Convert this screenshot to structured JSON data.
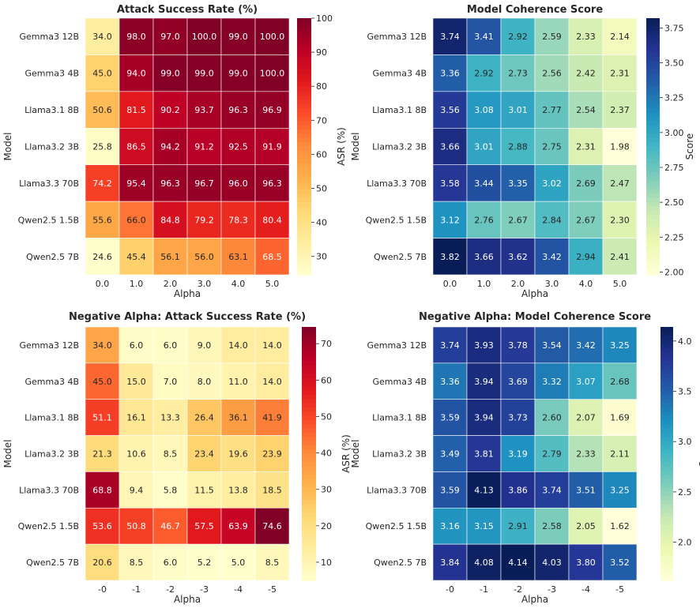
{
  "chart_data": [
    {
      "type": "heatmap",
      "title": "Attack Success Rate (%)",
      "xlabel": "Alpha",
      "ylabel": "Model",
      "colorbar_label": "ASR (%)",
      "colormap": "YlOrRd",
      "x_categories": [
        "0.0",
        "1.0",
        "2.0",
        "3.0",
        "4.0",
        "5.0"
      ],
      "y_categories": [
        "Gemma3 12B",
        "Gemma3 4B",
        "Llama3.1 8B",
        "Llama3.2 3B",
        "Llama3.3 70B",
        "Qwen2.5 1.5B",
        "Qwen2.5 7B"
      ],
      "values": [
        [
          34.0,
          98.0,
          97.0,
          100.0,
          99.0,
          100.0
        ],
        [
          45.0,
          94.0,
          99.0,
          99.0,
          99.0,
          100.0
        ],
        [
          50.6,
          81.5,
          90.2,
          93.7,
          96.3,
          96.9
        ],
        [
          25.8,
          86.5,
          94.2,
          91.2,
          92.5,
          91.9
        ],
        [
          74.2,
          95.4,
          96.3,
          96.7,
          96.0,
          96.3
        ],
        [
          55.6,
          66.0,
          84.8,
          79.2,
          78.3,
          80.4
        ],
        [
          24.6,
          45.4,
          56.1,
          56.0,
          63.1,
          68.5
        ]
      ],
      "decimals": 1,
      "vmin": 24.6,
      "vmax": 100,
      "colorbar_ticks": [
        30,
        40,
        50,
        60,
        70,
        80,
        90,
        100
      ]
    },
    {
      "type": "heatmap",
      "title": "Model Coherence Score",
      "xlabel": "Alpha",
      "ylabel": "Model",
      "colorbar_label": "Score",
      "colormap": "YlGnBu",
      "x_categories": [
        "0.0",
        "1.0",
        "2.0",
        "3.0",
        "4.0",
        "5.0"
      ],
      "y_categories": [
        "Gemma3 12B",
        "Gemma3 4B",
        "Llama3.1 8B",
        "Llama3.2 3B",
        "Llama3.3 70B",
        "Qwen2.5 1.5B",
        "Qwen2.5 7B"
      ],
      "values": [
        [
          3.74,
          3.41,
          2.92,
          2.59,
          2.33,
          2.14
        ],
        [
          3.36,
          2.92,
          2.73,
          2.56,
          2.42,
          2.31
        ],
        [
          3.56,
          3.08,
          3.01,
          2.77,
          2.54,
          2.37
        ],
        [
          3.66,
          3.01,
          2.88,
          2.75,
          2.31,
          1.98
        ],
        [
          3.58,
          3.44,
          3.35,
          3.02,
          2.69,
          2.47
        ],
        [
          3.12,
          2.76,
          2.67,
          2.84,
          2.67,
          2.3
        ],
        [
          3.82,
          3.66,
          3.62,
          3.42,
          2.94,
          2.41
        ]
      ],
      "decimals": 2,
      "vmin": 1.98,
      "vmax": 3.82,
      "colorbar_ticks": [
        2.0,
        2.25,
        2.5,
        2.75,
        3.0,
        3.25,
        3.5,
        3.75
      ]
    },
    {
      "type": "heatmap",
      "title": "Negative Alpha: Attack Success Rate (%)",
      "xlabel": "Alpha",
      "ylabel": "Model",
      "colorbar_label": "ASR (%)",
      "colormap": "YlOrRd",
      "x_categories": [
        "-0",
        "-1",
        "-2",
        "-3",
        "-4",
        "-5"
      ],
      "y_categories": [
        "Gemma3 12B",
        "Gemma3 4B",
        "Llama3.1 8B",
        "Llama3.2 3B",
        "Llama3.3 70B",
        "Qwen2.5 1.5B",
        "Qwen2.5 7B"
      ],
      "values": [
        [
          34.0,
          6.0,
          6.0,
          9.0,
          14.0,
          14.0
        ],
        [
          45.0,
          15.0,
          7.0,
          8.0,
          11.0,
          14.0
        ],
        [
          51.1,
          16.1,
          13.3,
          26.4,
          36.1,
          41.9
        ],
        [
          21.3,
          10.6,
          8.5,
          23.4,
          19.6,
          23.9
        ],
        [
          68.8,
          9.4,
          5.8,
          11.5,
          13.8,
          18.5
        ],
        [
          53.6,
          50.8,
          46.7,
          57.5,
          63.9,
          74.6
        ],
        [
          20.6,
          8.5,
          6.0,
          5.2,
          5.0,
          8.5
        ]
      ],
      "decimals": 1,
      "vmin": 5.0,
      "vmax": 74.6,
      "colorbar_ticks": [
        10,
        20,
        30,
        40,
        50,
        60,
        70
      ]
    },
    {
      "type": "heatmap",
      "title": "Negative Alpha: Model Coherence Score",
      "xlabel": "Alpha",
      "ylabel": "Model",
      "colorbar_label": "Score",
      "colormap": "YlGnBu",
      "x_categories": [
        "-0",
        "-1",
        "-2",
        "-3",
        "-4",
        "-5"
      ],
      "y_categories": [
        "Gemma3 12B",
        "Gemma3 4B",
        "Llama3.1 8B",
        "Llama3.2 3B",
        "Llama3.3 70B",
        "Qwen2.5 1.5B",
        "Qwen2.5 7B"
      ],
      "values": [
        [
          3.74,
          3.93,
          3.78,
          3.54,
          3.42,
          3.25
        ],
        [
          3.36,
          3.94,
          3.69,
          3.32,
          3.07,
          2.68
        ],
        [
          3.59,
          3.94,
          3.73,
          2.6,
          2.07,
          1.69
        ],
        [
          3.49,
          3.81,
          3.19,
          2.79,
          2.33,
          2.11
        ],
        [
          3.59,
          4.13,
          3.86,
          3.74,
          3.51,
          3.25
        ],
        [
          3.16,
          3.15,
          2.91,
          2.58,
          2.05,
          1.62
        ],
        [
          3.84,
          4.08,
          4.14,
          4.03,
          3.8,
          3.52
        ]
      ],
      "decimals": 2,
      "vmin": 1.62,
      "vmax": 4.14,
      "colorbar_ticks": [
        2.0,
        2.5,
        3.0,
        3.5,
        4.0
      ],
      "colorbar_tick_decimals": 1
    }
  ]
}
